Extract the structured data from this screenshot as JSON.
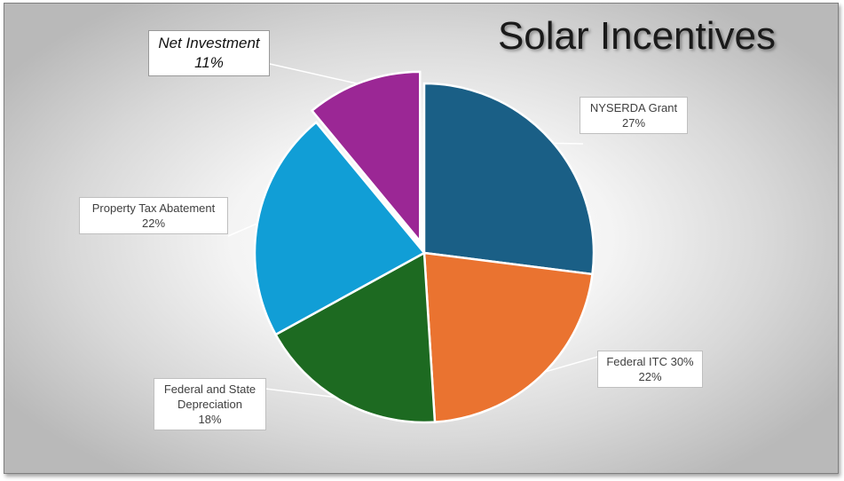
{
  "chart_data": {
    "type": "pie",
    "title": "Solar Incentives",
    "slices": [
      {
        "label": "NYSERDA Grant",
        "value": 27,
        "value_label": "27%",
        "color": "#1a5f86"
      },
      {
        "label": "Federal ITC 30%",
        "value": 22,
        "value_label": "22%",
        "color": "#ea7330"
      },
      {
        "label": "Federal and State Depreciation",
        "value": 18,
        "value_label": "18%",
        "color": "#1d6a21"
      },
      {
        "label": "Property Tax Abatement",
        "value": 22,
        "value_label": "22%",
        "color": "#119ed6"
      },
      {
        "label": "Net Investment",
        "value": 11,
        "value_label": "11%",
        "color": "#9b2795",
        "exploded": true,
        "emphasized": true
      }
    ],
    "start_angle": "12 o'clock",
    "direction": "clockwise",
    "legend": "none",
    "labels": "data callouts with category name and percentage"
  }
}
